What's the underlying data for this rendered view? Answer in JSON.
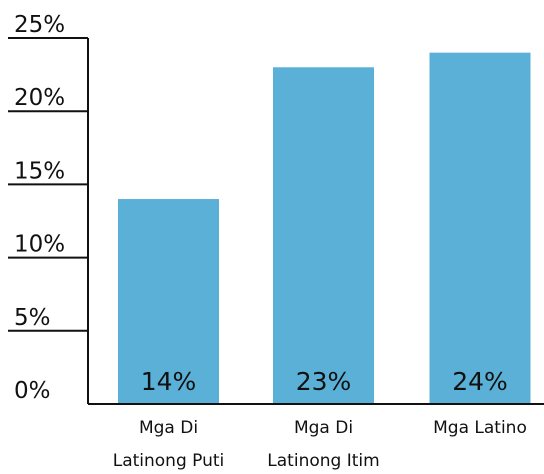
{
  "chart_data": {
    "type": "bar",
    "categories": [
      [
        "Mga Di",
        "Latinong Puti"
      ],
      [
        "Mga Di",
        "Latinong Itim"
      ],
      [
        "Mga Latino"
      ]
    ],
    "values": [
      14,
      23,
      24
    ],
    "value_labels": [
      "14%",
      "23%",
      "24%"
    ],
    "ylim": [
      0,
      25
    ],
    "yticks": [
      0,
      5,
      10,
      15,
      20,
      25
    ],
    "ytick_labels": [
      "0%",
      "5%",
      "10%",
      "15%",
      "20%",
      "25%"
    ],
    "bar_color": "#5ab0d6",
    "grid": false
  }
}
